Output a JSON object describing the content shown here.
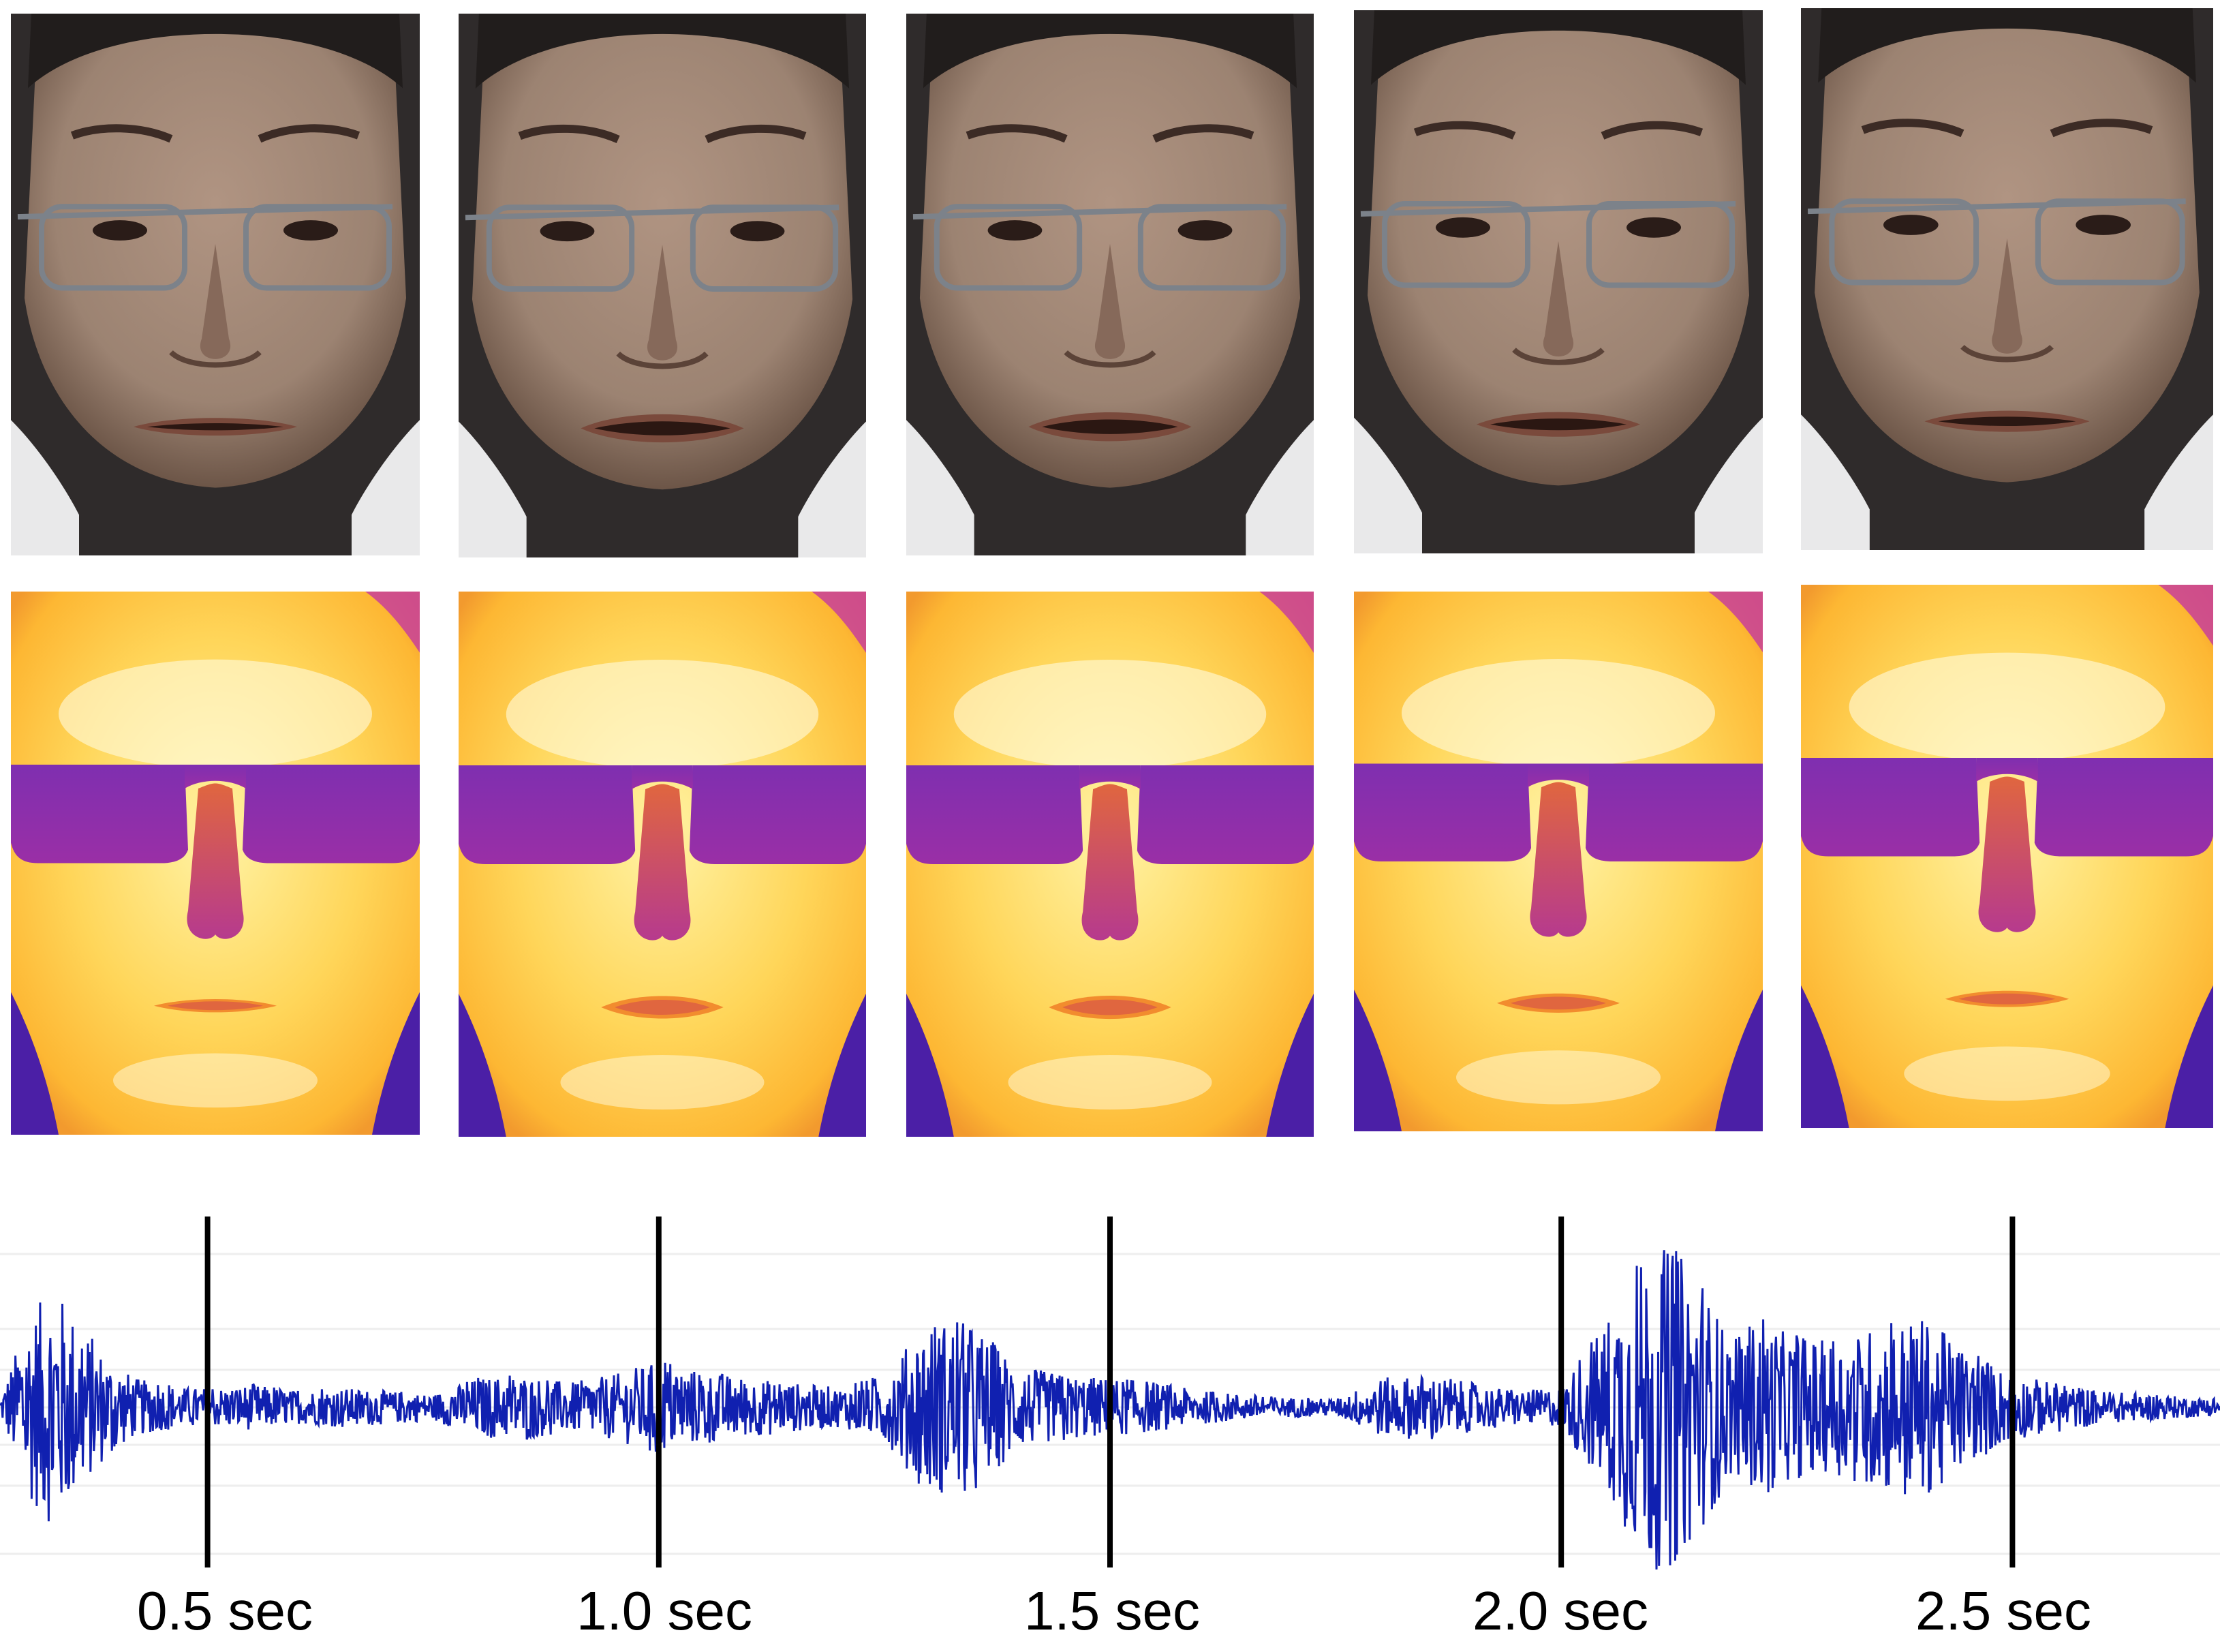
{
  "rows": {
    "rgb": {
      "frame_count": 5,
      "colors": {
        "bg": "#e9e9ea",
        "skin": "#9c8372",
        "skin_shadow": "#6c5547",
        "hair": "#211d1c",
        "shirt": "#2f2b2b",
        "lips": "#7a4a3c"
      }
    },
    "thermal": {
      "frame_count": 5,
      "colors": {
        "bg": "#4b1fa6",
        "warm": "#fdb733",
        "hot": "#fff3a5",
        "glasses": "#9a2fa6",
        "nose": "#b63a8e"
      }
    }
  },
  "timeline": {
    "labels": [
      "0.5 sec",
      "1.0 sec",
      "1.5 sec",
      "2.0 sec",
      "2.5 sec"
    ],
    "marker_times": [
      0.5,
      1.0,
      1.5,
      2.0,
      2.5
    ],
    "t_range": [
      0.27,
      2.73
    ],
    "waveform_color": "#1020b0",
    "marker_color": "#000000"
  },
  "chart_data": {
    "type": "line",
    "title": "",
    "xlabel": "",
    "ylabel": "",
    "x_ticks": [
      "0.5 sec",
      "1.0 sec",
      "1.5 sec",
      "2.0 sec",
      "2.5 sec"
    ],
    "xlim": [
      0.27,
      2.73
    ],
    "ylim": [
      -1,
      1
    ],
    "grid": true,
    "series": [
      {
        "x": [
          0.27,
          0.3,
          0.33,
          0.36,
          0.39,
          0.42,
          0.45,
          0.48,
          0.51,
          0.55,
          0.6,
          0.65,
          0.7,
          0.75,
          0.8,
          0.85,
          0.9,
          0.95,
          1.0,
          1.05,
          1.1,
          1.15,
          1.2,
          1.25,
          1.3,
          1.35,
          1.4,
          1.45,
          1.5,
          1.55,
          1.6,
          1.65,
          1.7,
          1.75,
          1.8,
          1.85,
          1.9,
          1.95,
          2.0,
          2.04,
          2.07,
          2.1,
          2.13,
          2.16,
          2.19,
          2.22,
          2.25,
          2.3,
          2.35,
          2.4,
          2.45,
          2.5,
          2.55,
          2.6,
          2.65,
          2.7,
          2.73
        ],
        "envelope": [
          0.05,
          0.55,
          0.75,
          0.5,
          0.3,
          0.18,
          0.14,
          0.12,
          0.12,
          0.14,
          0.1,
          0.12,
          0.1,
          0.08,
          0.18,
          0.2,
          0.15,
          0.2,
          0.28,
          0.22,
          0.18,
          0.15,
          0.12,
          0.2,
          0.55,
          0.5,
          0.25,
          0.2,
          0.18,
          0.15,
          0.1,
          0.08,
          0.06,
          0.05,
          0.18,
          0.2,
          0.15,
          0.1,
          0.12,
          0.45,
          0.75,
          1.0,
          0.95,
          0.7,
          0.4,
          0.55,
          0.45,
          0.4,
          0.5,
          0.55,
          0.35,
          0.2,
          0.15,
          0.1,
          0.08,
          0.06,
          0.05
        ]
      }
    ]
  }
}
